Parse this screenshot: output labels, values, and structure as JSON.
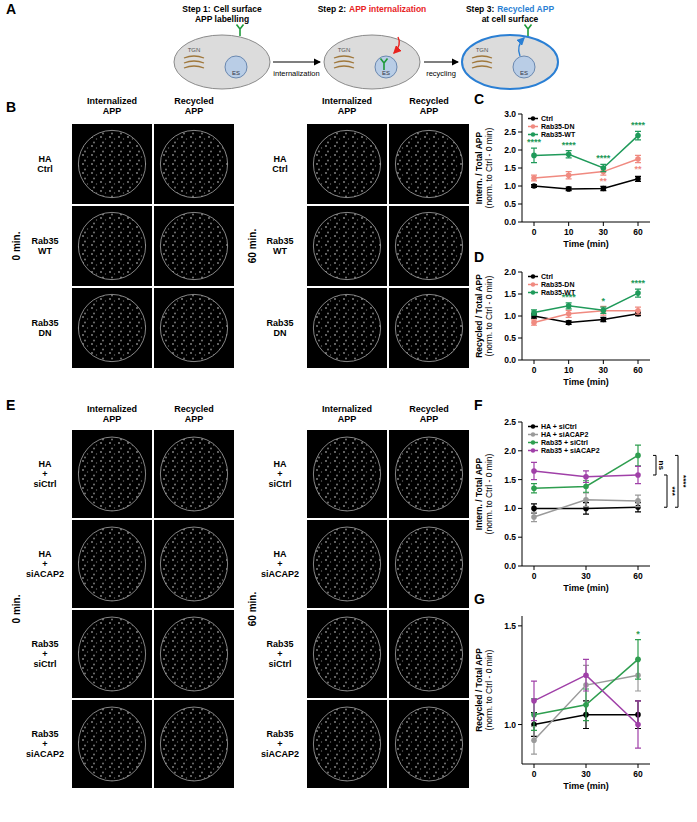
{
  "panel_labels": [
    "A",
    "B",
    "C",
    "D",
    "E",
    "F",
    "G"
  ],
  "schematic": {
    "steps": [
      {
        "lines": [
          [
            {
              "text": "Step 1:"
            },
            {
              "text": "Cell surface"
            }
          ],
          [
            {
              "text": "APP labelling"
            }
          ]
        ]
      },
      {
        "lines": [
          [
            {
              "text": "Step 2:"
            },
            {
              "text": "APP internalization",
              "color": "#e8231f"
            }
          ]
        ]
      },
      {
        "lines": [
          [
            {
              "text": "Step 3:"
            },
            {
              "text": "Recycled APP",
              "color": "#2a7fd4"
            }
          ],
          [
            {
              "text": "at cell surface"
            }
          ]
        ]
      }
    ],
    "arrow_labels": [
      "internalization",
      "recycling"
    ],
    "organelles": [
      "TGN",
      "ES"
    ]
  },
  "panel_b": {
    "timepoints": [
      "0 min.",
      "60 min."
    ],
    "columns": [
      "Internalized APP",
      "Recycled APP"
    ],
    "rows": [
      "HA Ctrl",
      "Rab35 WT",
      "Rab35 DN"
    ]
  },
  "panel_e": {
    "timepoints": [
      "0 min.",
      "60 min."
    ],
    "columns": [
      "Internalized APP",
      "Recycled APP"
    ],
    "rows": [
      "HA + siCtrl",
      "HA + siACAP2",
      "Rab35 + siCtrl",
      "Rab35 + siACAP2"
    ]
  },
  "chart_data": [
    {
      "type": "line",
      "ylabel": [
        "Intern. / Total APP",
        "(norm. to Ctrl - 0 min)"
      ],
      "xlabel": "Time (min)",
      "categories": [
        "0",
        "10",
        "30",
        "60"
      ],
      "ylim": [
        0,
        3
      ],
      "yticks": [
        {
          "value": 0,
          "label": "0.0"
        },
        0.5,
        {
          "value": 1,
          "label": "1.0"
        },
        1.5,
        {
          "value": 2,
          "label": "2.0"
        },
        2.5,
        {
          "value": 3,
          "label": "3.0"
        }
      ],
      "legend": "upper left",
      "series": [
        {
          "name": "Ctrl",
          "color": "#000000",
          "values": [
            1.0,
            0.92,
            0.93,
            1.2
          ],
          "errors": [
            0.04,
            0.05,
            0.06,
            0.07
          ]
        },
        {
          "name": "Rab35-DN",
          "color": "#f08a80",
          "values": [
            1.22,
            1.3,
            1.4,
            1.75
          ],
          "errors": [
            0.08,
            0.1,
            0.1,
            0.1
          ],
          "significance": [
            null,
            null,
            "**",
            "**"
          ]
        },
        {
          "name": "Rab35-WT",
          "color": "#1f9a5a",
          "values": [
            1.85,
            1.88,
            1.5,
            2.4
          ],
          "errors": [
            0.2,
            0.1,
            0.1,
            0.12
          ],
          "significance": [
            "****",
            "****",
            "****",
            "****"
          ]
        }
      ]
    },
    {
      "type": "line",
      "ylabel": [
        "Recycled / Total APP",
        "(norm. to Ctrl - 0 min)"
      ],
      "xlabel": "Time (min)",
      "categories": [
        "0",
        "10",
        "30",
        "60"
      ],
      "ylim": [
        0,
        2
      ],
      "yticks": [
        {
          "value": 0,
          "label": "0.0"
        },
        0.5,
        {
          "value": 1,
          "label": "1.0"
        },
        1.5,
        {
          "value": 2,
          "label": "2.0"
        }
      ],
      "legend": "upper left",
      "series": [
        {
          "name": "Ctrl",
          "color": "#000000",
          "values": [
            1.0,
            0.85,
            0.92,
            1.05
          ],
          "errors": [
            0.05,
            0.04,
            0.05,
            0.04
          ]
        },
        {
          "name": "Rab35-DN",
          "color": "#f08a80",
          "values": [
            0.85,
            1.05,
            1.12,
            1.12
          ],
          "errors": [
            0.06,
            0.08,
            0.1,
            0.08
          ]
        },
        {
          "name": "Rab35-WT",
          "color": "#1f9a5a",
          "values": [
            1.08,
            1.23,
            1.13,
            1.52
          ],
          "errors": [
            0.06,
            0.07,
            0.07,
            0.09
          ],
          "significance": [
            null,
            "****",
            "*",
            "****"
          ]
        }
      ]
    },
    {
      "type": "line",
      "ylabel": [
        "Intern. / Total APP",
        "(norm. to Ctrl - 0 min)"
      ],
      "xlabel": "Time (min)",
      "categories": [
        "0",
        "30",
        "60"
      ],
      "ylim": [
        0,
        2.5
      ],
      "yticks": [
        {
          "value": 0,
          "label": "0.0"
        },
        0.5,
        {
          "value": 1,
          "label": "1.0"
        },
        1.5,
        {
          "value": 2,
          "label": "2.0"
        },
        2.5
      ],
      "legend": "upper left",
      "series": [
        {
          "name": "HA + siCtrl",
          "color": "#000000",
          "values": [
            1.0,
            1.0,
            1.02
          ],
          "errors": [
            0.08,
            0.1,
            0.08
          ]
        },
        {
          "name": "HA + siACAP2",
          "color": "#9a9a9a",
          "values": [
            0.85,
            1.15,
            1.13
          ],
          "errors": [
            0.08,
            0.12,
            0.1
          ]
        },
        {
          "name": "Rab35 + siCtrl",
          "color": "#2e9e4f",
          "values": [
            1.35,
            1.38,
            1.92
          ],
          "errors": [
            0.08,
            0.1,
            0.18
          ]
        },
        {
          "name": "Rab35 + siACAP2",
          "color": "#a040a8",
          "values": [
            1.65,
            1.55,
            1.58
          ],
          "errors": [
            0.15,
            0.1,
            0.15
          ]
        }
      ],
      "comparisons": [
        {
          "between": [
            "Rab35 + siCtrl",
            "Rab35 + siACAP2"
          ],
          "category": "60",
          "label": "ns"
        },
        {
          "between": [
            "HA + siCtrl",
            "Rab35 + siACAP2"
          ],
          "category": "60",
          "label": "***"
        },
        {
          "between": [
            "HA + siCtrl",
            "Rab35 + siCtrl"
          ],
          "category": "60",
          "label": "****"
        }
      ]
    },
    {
      "type": "line",
      "ylabel": [
        "Recycled / Total APP",
        "(norm. to Ctrl - 0 min)"
      ],
      "xlabel": "Time (min)",
      "categories": [
        "0",
        "30",
        "60"
      ],
      "ylim": [
        0.8,
        1.55
      ],
      "yticks": [
        {
          "value": 1,
          "label": "1.0"
        },
        1.5
      ],
      "series": [
        {
          "name": "HA + siCtrl",
          "color": "#000000",
          "values": [
            1.0,
            1.05,
            1.05
          ],
          "errors": [
            0.06,
            0.07,
            0.07
          ]
        },
        {
          "name": "HA + siACAP2",
          "color": "#9a9a9a",
          "values": [
            0.92,
            1.2,
            1.25
          ],
          "errors": [
            0.07,
            0.1,
            0.08
          ]
        },
        {
          "name": "Rab35 + siCtrl",
          "color": "#2e9e4f",
          "values": [
            1.05,
            1.1,
            1.33
          ],
          "errors": [
            0.08,
            0.08,
            0.1
          ],
          "significance": [
            null,
            null,
            "*"
          ]
        },
        {
          "name": "Rab35 + siACAP2",
          "color": "#a040a8",
          "values": [
            1.12,
            1.25,
            1.0
          ],
          "errors": [
            0.1,
            0.08,
            0.12
          ]
        }
      ]
    }
  ]
}
